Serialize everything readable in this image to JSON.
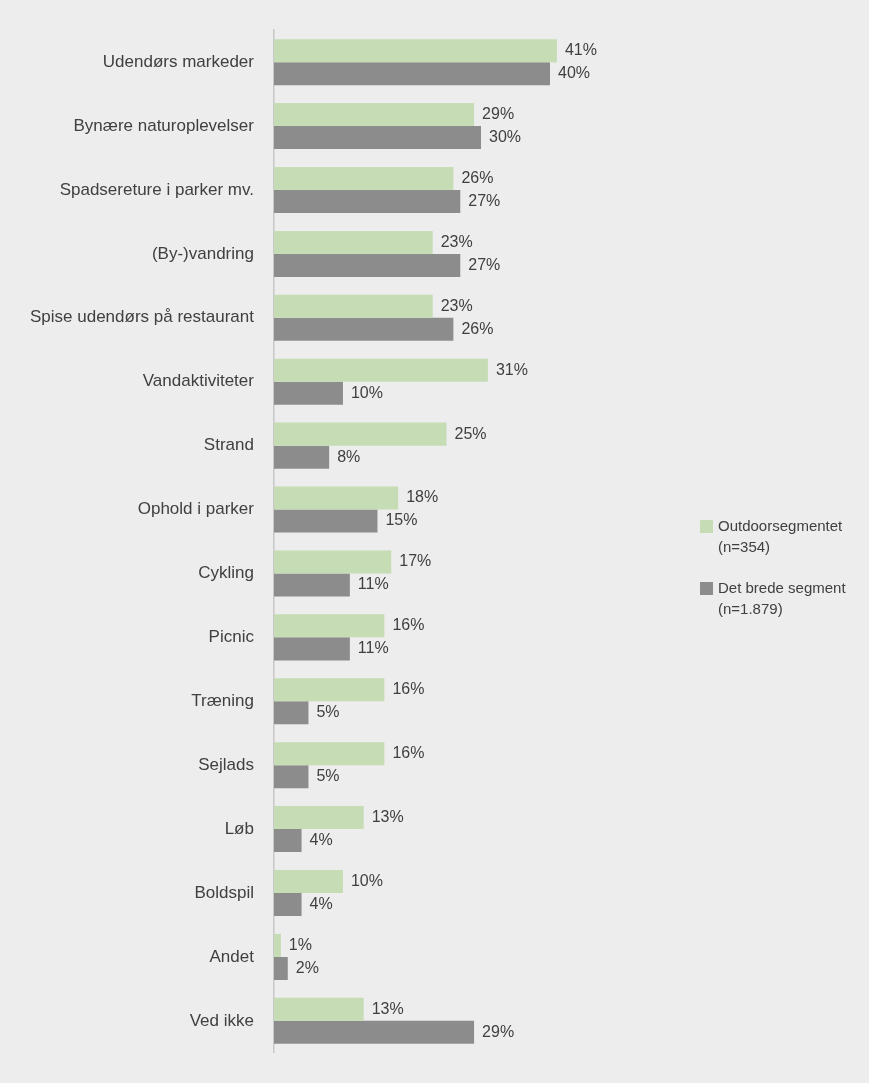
{
  "chart_data": {
    "type": "bar",
    "orientation": "horizontal",
    "tick_labels": "y",
    "grid": false,
    "legend": "right",
    "categories": [
      "Udendørs markeder",
      "Bynære naturoplevelser",
      "Spadsereture i parker mv.",
      "(By-)vandring",
      "Spise udendørs på restaurant",
      "Vandaktiviteter",
      "Strand",
      "Ophold i parker",
      "Cykling",
      "Picnic",
      "Træning",
      "Sejlads",
      "Løb",
      "Boldspil",
      "Andet",
      "Ved ikke"
    ],
    "series": [
      {
        "name": "Outdoorsegmentet (n=354)",
        "color": "#c5dcb4",
        "values": [
          41,
          29,
          26,
          23,
          23,
          31,
          25,
          18,
          17,
          16,
          16,
          16,
          13,
          10,
          1,
          13
        ],
        "value_labels": [
          "41%",
          "29%",
          "26%",
          "23%",
          "23%",
          "31%",
          "25%",
          "18%",
          "17%",
          "16%",
          "16%",
          "16%",
          "13%",
          "10%",
          "1%",
          "13%"
        ]
      },
      {
        "name": "Det brede segment (n=1.879)",
        "color": "#8c8c8c",
        "values": [
          40,
          30,
          27,
          27,
          26,
          10,
          8,
          15,
          11,
          11,
          5,
          5,
          4,
          4,
          2,
          29
        ],
        "value_labels": [
          "40%",
          "30%",
          "27%",
          "27%",
          "26%",
          "10%",
          "8%",
          "15%",
          "11%",
          "11%",
          "5%",
          "5%",
          "4%",
          "4%",
          "2%",
          "29%"
        ]
      }
    ]
  }
}
